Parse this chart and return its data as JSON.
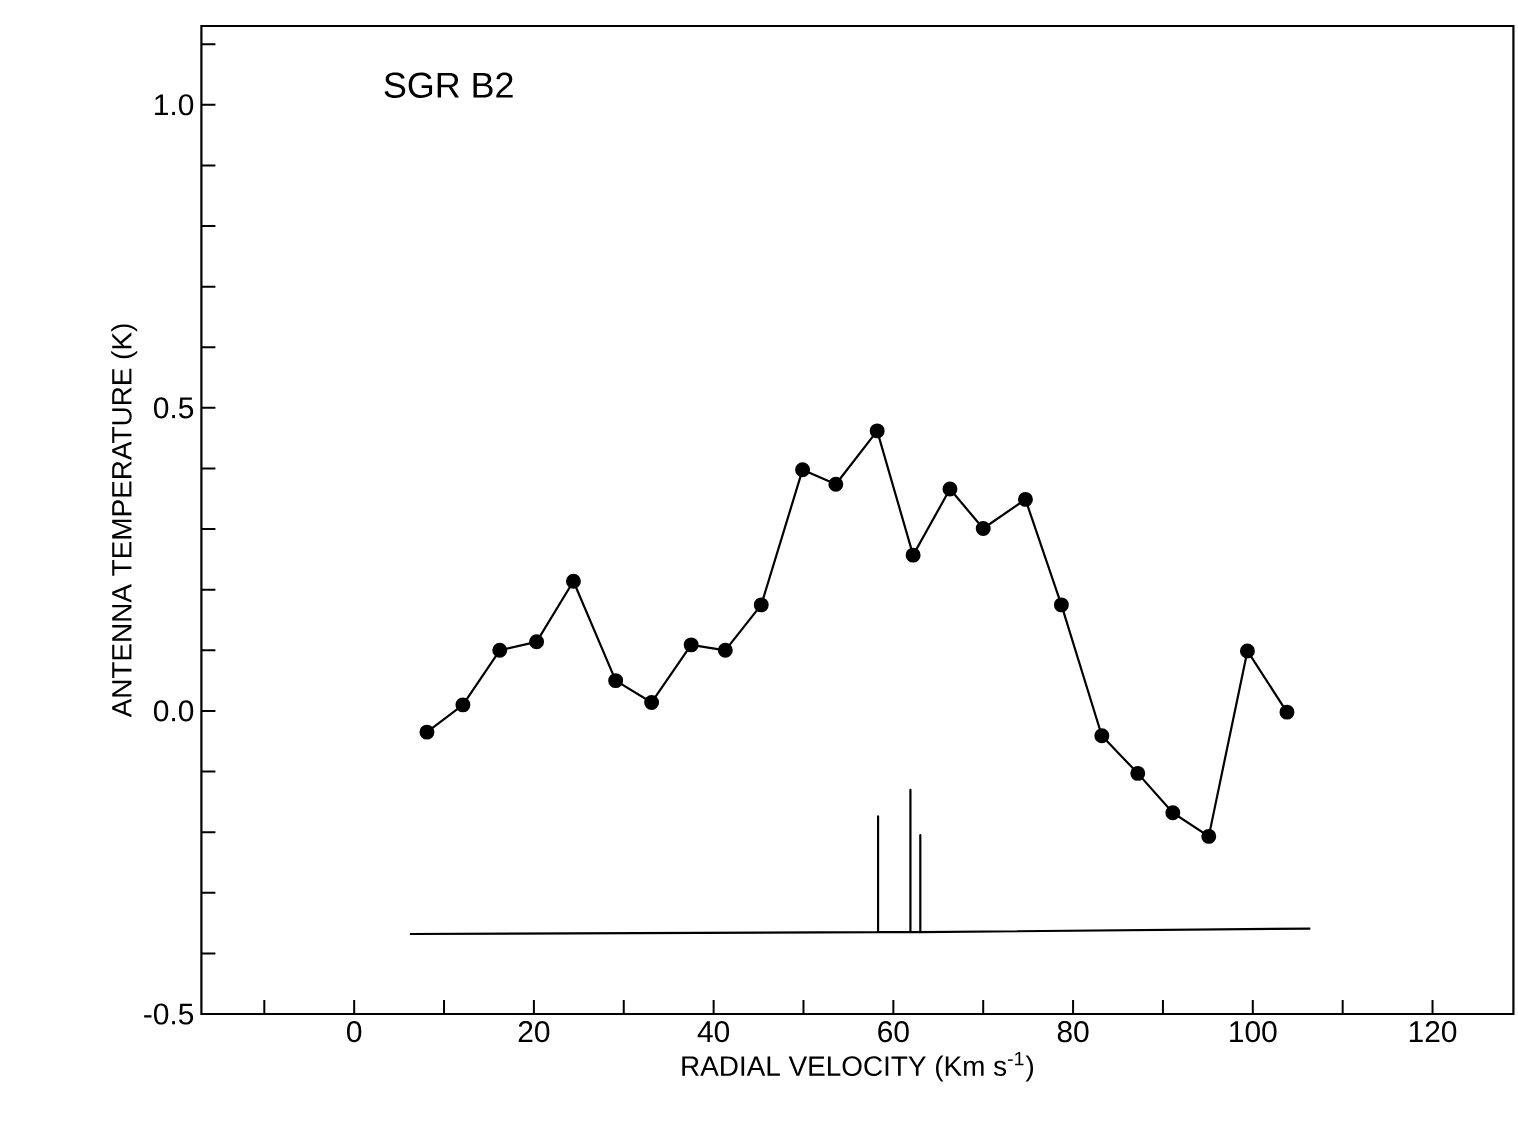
{
  "chart_data": {
    "type": "line",
    "xlabel": "RADIAL VELOCITY (Km s$^{-1}$)",
    "ylabel": "ANTENNA TEMPERATURE (K)",
    "annotations": [
      "SGR B2"
    ],
    "xlim": [
      -17,
      129
    ],
    "ylim": [
      -0.5,
      1.13
    ],
    "xticks": [
      {
        "value": -10,
        "label": null
      },
      0,
      {
        "value": 10,
        "label": null
      },
      20,
      {
        "value": 30,
        "label": null
      },
      40,
      {
        "value": 50,
        "label": null
      },
      60,
      {
        "value": 70,
        "label": null
      },
      80,
      {
        "value": 90,
        "label": null
      },
      100,
      {
        "value": 110,
        "label": null
      },
      120
    ],
    "yticks": [
      {
        "value": -0.5,
        "label": "-0.5"
      },
      {
        "value": -0.4,
        "label": null
      },
      {
        "value": -0.3,
        "label": null
      },
      {
        "value": -0.2,
        "label": null
      },
      {
        "value": -0.1,
        "label": null
      },
      {
        "value": 0.0,
        "label": "0.0"
      },
      {
        "value": 0.1,
        "label": null
      },
      {
        "value": 0.2,
        "label": null
      },
      {
        "value": 0.3,
        "label": null
      },
      {
        "value": 0.4,
        "label": null
      },
      0.5,
      {
        "value": 0.6,
        "label": null
      },
      {
        "value": 0.7,
        "label": null
      },
      {
        "value": 0.8,
        "label": null
      },
      {
        "value": 0.9,
        "label": null
      },
      {
        "value": 1.0,
        "label": "1.0"
      },
      {
        "value": 1.1,
        "label": null
      }
    ],
    "series": [
      {
        "color": "#000000",
        "marker": "circle",
        "x": [
          8.1,
          12.1,
          16.2,
          20.3,
          24.4,
          29.1,
          33.1,
          37.5,
          41.3,
          45.3,
          49.9,
          53.6,
          58.2,
          62.2,
          66.3,
          70.0,
          74.7,
          78.7,
          83.2,
          87.2,
          91.1,
          95.1,
          99.4,
          103.8
        ],
        "values": [
          -0.035,
          0.01,
          0.1,
          0.114,
          0.214,
          0.05,
          0.014,
          0.109,
          0.1,
          0.175,
          0.398,
          0.374,
          0.462,
          0.257,
          0.366,
          0.301,
          0.349,
          0.175,
          -0.041,
          -0.103,
          -0.168,
          -0.207,
          0.099,
          -0.002
        ]
      },
      {
        "color": "#000000",
        "marker": "none",
        "x": [
          6.2,
          58.3,
          58.3,
          58.3,
          61.9,
          61.9,
          61.9,
          63.0,
          63.0,
          63.0,
          106.4
        ],
        "values": [
          -0.368,
          -0.365,
          -0.174,
          -0.365,
          -0.365,
          -0.13,
          -0.365,
          -0.365,
          -0.205,
          -0.365,
          -0.359
        ]
      }
    ]
  }
}
